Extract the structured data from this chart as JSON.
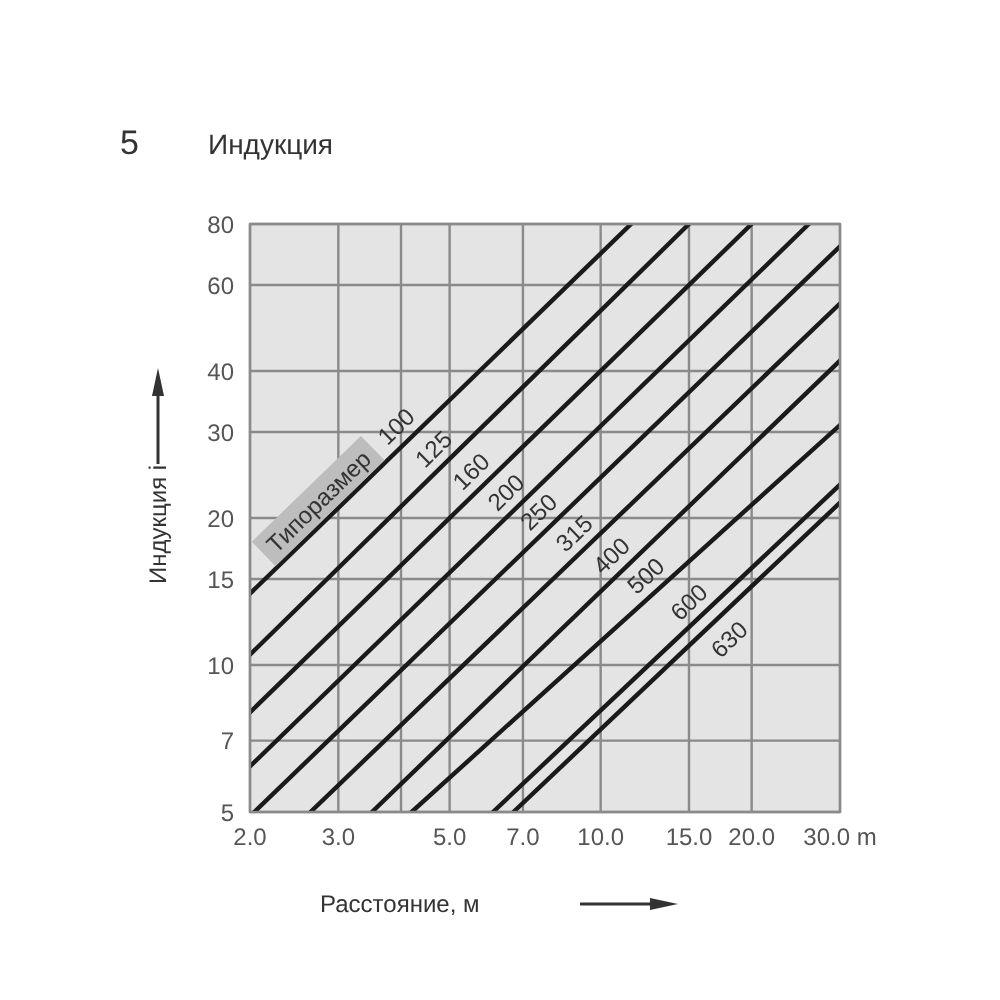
{
  "chart_data": {
    "type": "line",
    "title": "Индукция",
    "annotations": [
      "5"
    ],
    "xlabel": "Расстояние, м",
    "ylabel": "Индукция i",
    "legend_title": "Типоразмер",
    "log": "xy",
    "grid": true,
    "xlim": [
      2,
      30
    ],
    "ylim": [
      5,
      80
    ],
    "xticks": [
      {
        "value": 2,
        "label": "2.0"
      },
      {
        "value": 3,
        "label": "3.0"
      },
      {
        "value": 4,
        "label": null
      },
      {
        "value": 5,
        "label": "5.0"
      },
      {
        "value": 7,
        "label": "7.0"
      },
      {
        "value": 10,
        "label": "10.0"
      },
      {
        "value": 15,
        "label": "15.0"
      },
      {
        "value": 20,
        "label": "20.0"
      },
      {
        "value": 30,
        "label": "30.0 m"
      }
    ],
    "yticks": [
      5,
      7,
      10,
      15,
      20,
      30,
      40,
      60,
      80
    ],
    "series": [
      {
        "name": "100",
        "color": "#1a1a1a",
        "x": [
          2,
          11.5
        ],
        "values": [
          14,
          80
        ]
      },
      {
        "name": "125",
        "color": "#1a1a1a",
        "x": [
          2,
          15
        ],
        "values": [
          10.5,
          80
        ]
      },
      {
        "name": "160",
        "color": "#1a1a1a",
        "x": [
          2,
          20
        ],
        "values": [
          8,
          80
        ]
      },
      {
        "name": "200",
        "color": "#1a1a1a",
        "x": [
          2,
          26
        ],
        "values": [
          6.2,
          80
        ]
      },
      {
        "name": "250",
        "color": "#1a1a1a",
        "x": [
          2.04,
          30
        ],
        "values": [
          5,
          72
        ]
      },
      {
        "name": "315",
        "color": "#1a1a1a",
        "x": [
          2.64,
          30
        ],
        "values": [
          5,
          55
        ]
      },
      {
        "name": "400",
        "color": "#1a1a1a",
        "x": [
          3.5,
          30
        ],
        "values": [
          5,
          42
        ]
      },
      {
        "name": "500",
        "color": "#1a1a1a",
        "x": [
          4.2,
          30
        ],
        "values": [
          5,
          31
        ]
      },
      {
        "name": "600",
        "color": "#1a1a1a",
        "x": [
          6.1,
          30
        ],
        "values": [
          5,
          23.4
        ]
      },
      {
        "name": "630",
        "color": "#1a1a1a",
        "x": [
          6.7,
          30
        ],
        "values": [
          5,
          21.5
        ]
      }
    ]
  }
}
